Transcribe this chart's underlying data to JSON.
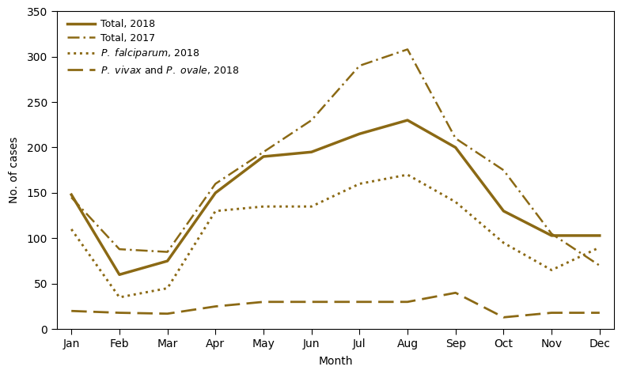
{
  "months": [
    "Jan",
    "Feb",
    "Mar",
    "Apr",
    "May",
    "Jun",
    "Jul",
    "Aug",
    "Sep",
    "Oct",
    "Nov",
    "Dec"
  ],
  "total_2018": [
    148,
    60,
    75,
    150,
    190,
    195,
    215,
    230,
    200,
    130,
    103,
    103
  ],
  "total_2017": [
    145,
    88,
    85,
    160,
    195,
    230,
    290,
    308,
    210,
    175,
    105,
    70
  ],
  "p_falciparum_2018": [
    110,
    35,
    45,
    130,
    135,
    135,
    160,
    170,
    140,
    95,
    65,
    90
  ],
  "p_vivax_ovale_2018": [
    20,
    18,
    17,
    25,
    30,
    30,
    30,
    30,
    40,
    13,
    18,
    18
  ],
  "color": "#8B6914",
  "ylim": [
    0,
    350
  ],
  "yticks": [
    0,
    50,
    100,
    150,
    200,
    250,
    300,
    350
  ],
  "ylabel": "No. of cases",
  "xlabel": "Month",
  "bg_color": "#ffffff",
  "lw_solid": 2.0,
  "lw_dashdot": 1.8,
  "lw_dotted": 1.8,
  "lw_dashed": 2.0
}
